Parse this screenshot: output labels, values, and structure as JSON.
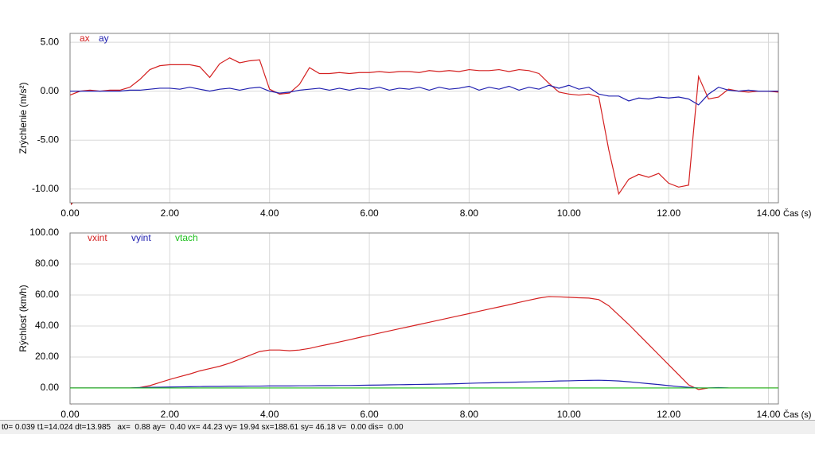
{
  "chart_data": [
    {
      "type": "line",
      "ylabel": "Zrýchlenie (m/s²)",
      "xlabel": "Čas (s)",
      "x": [
        0,
        0.2,
        0.4,
        0.6,
        0.8,
        1.0,
        1.2,
        1.4,
        1.6,
        1.8,
        2.0,
        2.2,
        2.4,
        2.6,
        2.8,
        3.0,
        3.2,
        3.4,
        3.6,
        3.8,
        4.0,
        4.2,
        4.4,
        4.6,
        4.8,
        5.0,
        5.2,
        5.4,
        5.6,
        5.8,
        6.0,
        6.2,
        6.4,
        6.6,
        6.8,
        7.0,
        7.2,
        7.4,
        7.6,
        7.8,
        8.0,
        8.2,
        8.4,
        8.6,
        8.8,
        9.0,
        9.2,
        9.4,
        9.6,
        9.8,
        10.0,
        10.2,
        10.4,
        10.6,
        10.8,
        11.0,
        11.2,
        11.4,
        11.6,
        11.8,
        12.0,
        12.2,
        12.4,
        12.6,
        12.8,
        13.0,
        13.2,
        13.4,
        13.6,
        13.8,
        14.0,
        14.2
      ],
      "series": [
        {
          "name": "ax",
          "color": "#d42020",
          "values": [
            -0.4,
            0,
            0.1,
            0,
            0.1,
            0.1,
            0.4,
            1.2,
            2.2,
            2.6,
            2.7,
            2.7,
            2.7,
            2.5,
            1.4,
            2.8,
            3.4,
            2.9,
            3.1,
            3.2,
            0.2,
            -0.3,
            -0.2,
            0.7,
            2.4,
            1.8,
            1.8,
            1.9,
            1.8,
            1.9,
            1.9,
            2.0,
            1.9,
            2.0,
            2.0,
            1.9,
            2.1,
            2.0,
            2.1,
            2.0,
            2.2,
            2.1,
            2.1,
            2.2,
            2.0,
            2.2,
            2.1,
            1.8,
            0.8,
            -0.1,
            -0.3,
            -0.4,
            -0.3,
            -0.6,
            -6.0,
            -10.5,
            -9.0,
            -8.5,
            -8.8,
            -8.4,
            -9.4,
            -9.8,
            -9.6,
            1.5,
            -0.8,
            -0.6,
            0.2,
            0,
            -0.1,
            0,
            0,
            -0.1
          ]
        },
        {
          "name": "ay",
          "color": "#2020b0",
          "values": [
            0,
            0,
            0,
            0,
            0,
            0,
            0.1,
            0.1,
            0.2,
            0.3,
            0.3,
            0.2,
            0.4,
            0.2,
            0,
            0.2,
            0.3,
            0.1,
            0.3,
            0.4,
            0,
            -0.2,
            -0.1,
            0.1,
            0.2,
            0.3,
            0.1,
            0.3,
            0.1,
            0.3,
            0.2,
            0.4,
            0.1,
            0.3,
            0.2,
            0.4,
            0.1,
            0.4,
            0.2,
            0.3,
            0.5,
            0.1,
            0.4,
            0.2,
            0.5,
            0.1,
            0.4,
            0.2,
            0.6,
            0.3,
            0.6,
            0.2,
            0.4,
            -0.3,
            -0.5,
            -0.5,
            -1.0,
            -0.7,
            -0.8,
            -0.6,
            -0.7,
            -0.6,
            -0.8,
            -1.4,
            -0.3,
            0.4,
            0.1,
            0,
            0.1,
            0,
            0,
            0
          ]
        }
      ],
      "xlim": [
        0,
        14.2
      ],
      "ylim": [
        -11.4,
        5.9
      ],
      "xticks": [
        {
          "value": 0,
          "label": "0.00"
        },
        {
          "value": 2,
          "label": "2.00"
        },
        {
          "value": 4,
          "label": "4.00"
        },
        {
          "value": 6,
          "label": "6.00"
        },
        {
          "value": 8,
          "label": "8.00"
        },
        {
          "value": 10,
          "label": "10.00"
        },
        {
          "value": 12,
          "label": "12.00"
        },
        {
          "value": 14,
          "label": "14.00"
        }
      ],
      "yticks": [
        {
          "value": -10,
          "label": "-10.00"
        },
        {
          "value": -5,
          "label": "-5.00"
        },
        {
          "value": 0,
          "label": "0.00"
        },
        {
          "value": 5,
          "label": "5.00"
        }
      ],
      "grid": true
    },
    {
      "type": "line",
      "ylabel": "Rýchlosť (km/h)",
      "xlabel": "Čas (s)",
      "x": [
        0,
        0.2,
        0.4,
        0.6,
        0.8,
        1.0,
        1.2,
        1.4,
        1.6,
        1.8,
        2.0,
        2.2,
        2.4,
        2.6,
        2.8,
        3.0,
        3.2,
        3.4,
        3.6,
        3.8,
        4.0,
        4.2,
        4.4,
        4.6,
        4.8,
        5.0,
        5.2,
        5.4,
        5.6,
        5.8,
        6.0,
        6.2,
        6.4,
        6.6,
        6.8,
        7.0,
        7.2,
        7.4,
        7.6,
        7.8,
        8.0,
        8.2,
        8.4,
        8.6,
        8.8,
        9.0,
        9.2,
        9.4,
        9.6,
        9.8,
        10.0,
        10.2,
        10.4,
        10.6,
        10.8,
        11.0,
        11.2,
        11.4,
        11.6,
        11.8,
        12.0,
        12.2,
        12.4,
        12.6,
        12.8,
        13.0,
        13.2,
        13.4,
        13.6,
        13.8,
        14.0,
        14.2
      ],
      "series": [
        {
          "name": "vxint",
          "color": "#d42020",
          "values": [
            0,
            0,
            0,
            0,
            0,
            0,
            0,
            0.3,
            1.5,
            3.5,
            5.5,
            7.3,
            9,
            11,
            12.5,
            14,
            16,
            18.5,
            21,
            23.5,
            24.5,
            24.5,
            24,
            24.5,
            25.5,
            27,
            28.3,
            29.7,
            31.1,
            32.6,
            34,
            35.4,
            36.8,
            38.2,
            39.6,
            41,
            42.4,
            43.8,
            45.2,
            46.6,
            48,
            49.5,
            50.9,
            52.3,
            53.7,
            55.2,
            56.6,
            58,
            59,
            58.8,
            58.5,
            58.2,
            58,
            57,
            53,
            47,
            41,
            34.5,
            28,
            21.5,
            15,
            8.5,
            2,
            -1,
            0,
            0,
            0,
            0,
            0,
            0,
            0,
            0
          ]
        },
        {
          "name": "vyint",
          "color": "#2020b0",
          "values": [
            0,
            0,
            0,
            0,
            0,
            0,
            0,
            0.2,
            0.4,
            0.5,
            0.6,
            0.7,
            0.8,
            0.9,
            1,
            1,
            1.1,
            1.1,
            1.2,
            1.2,
            1.3,
            1.3,
            1.3,
            1.4,
            1.4,
            1.5,
            1.5,
            1.6,
            1.6,
            1.7,
            1.8,
            1.9,
            2,
            2.1,
            2.2,
            2.3,
            2.4,
            2.5,
            2.6,
            2.8,
            3,
            3.2,
            3.3,
            3.5,
            3.6,
            3.8,
            3.9,
            4.1,
            4.3,
            4.5,
            4.6,
            4.8,
            4.9,
            5,
            4.8,
            4.5,
            4,
            3.4,
            2.8,
            2.2,
            1.5,
            0.9,
            0.4,
            0,
            0,
            0.2,
            0,
            null,
            null,
            null,
            null,
            null
          ]
        },
        {
          "name": "vtach",
          "color": "#20c020",
          "values": [
            0,
            0,
            0,
            0,
            0,
            0,
            0,
            0,
            0,
            0,
            0,
            0,
            0,
            0,
            0,
            0,
            0,
            0,
            0,
            0,
            0,
            0,
            0,
            0,
            0,
            0,
            0,
            0,
            0,
            0,
            0,
            0,
            0,
            0,
            0,
            0,
            0,
            0,
            0,
            0,
            0,
            0,
            0,
            0,
            0,
            0,
            0,
            0,
            0,
            0,
            0,
            0,
            0,
            0,
            0,
            0,
            0,
            0,
            0,
            0,
            0,
            0,
            0,
            0,
            0,
            0,
            0,
            0,
            0,
            0,
            0,
            0
          ]
        }
      ],
      "xlim": [
        0,
        14.2
      ],
      "ylim": [
        -10.3,
        100
      ],
      "xticks": [
        {
          "value": 0,
          "label": "0.00"
        },
        {
          "value": 2,
          "label": "2.00"
        },
        {
          "value": 4,
          "label": "4.00"
        },
        {
          "value": 6,
          "label": "6.00"
        },
        {
          "value": 8,
          "label": "8.00"
        },
        {
          "value": 10,
          "label": "10.00"
        },
        {
          "value": 12,
          "label": "12.00"
        },
        {
          "value": 14,
          "label": "14.00"
        }
      ],
      "yticks": [
        {
          "value": 0,
          "label": "0.00"
        },
        {
          "value": 20,
          "label": "20.00"
        },
        {
          "value": 40,
          "label": "40.00"
        },
        {
          "value": 60,
          "label": "60.00"
        },
        {
          "value": 80,
          "label": "80.00"
        },
        {
          "value": 100,
          "label": "100.00"
        }
      ],
      "grid": true
    }
  ],
  "status_bar": {
    "text": "t0= 0.039 t1=14.024 dt=13.985   ax=  0.88 ay=  0.40 vx= 44.23 vy= 19.94 sx=188.61 sy= 46.18 v=  0.00 dis=  0.00"
  }
}
